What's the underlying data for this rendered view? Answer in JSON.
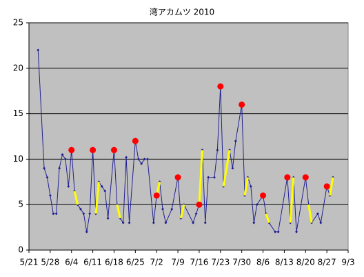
{
  "chart_data": {
    "type": "line",
    "title": "湾アカムツ 2010",
    "x": [
      3,
      5,
      6,
      7,
      8,
      9,
      10,
      11,
      12,
      13,
      14,
      15,
      16,
      17,
      18,
      19,
      20,
      21,
      22,
      23,
      24,
      25,
      26,
      28,
      29,
      30,
      31,
      32,
      33,
      35,
      36,
      37,
      38,
      39,
      41,
      42,
      43,
      44,
      45,
      47,
      49,
      50,
      51,
      54,
      55,
      56,
      57,
      58,
      59,
      61,
      62,
      63,
      64,
      66,
      67,
      68,
      70,
      71,
      72,
      73,
      74,
      75,
      77,
      78,
      79,
      81,
      82,
      85,
      86,
      87,
      88,
      91,
      92,
      93,
      95,
      96,
      98,
      99,
      100
    ],
    "series": [
      {
        "color": "#1f1f8f",
        "style": "line",
        "values": [
          22,
          9,
          8,
          6,
          4,
          4,
          9,
          10.5,
          10,
          7,
          11,
          6.5,
          5,
          4.5,
          4,
          2,
          4,
          11,
          4,
          7.5,
          7,
          6.5,
          3.5,
          11,
          5,
          3.5,
          3,
          10.2,
          3,
          12,
          10,
          9.5,
          10,
          10,
          3,
          6,
          7.5,
          4.5,
          3,
          4.5,
          8,
          3.5,
          5,
          3,
          4,
          5,
          11,
          3,
          8,
          8,
          11,
          18,
          7,
          11,
          9,
          12,
          16,
          6,
          8,
          7,
          3,
          5,
          6,
          4,
          3,
          2,
          2,
          8,
          3,
          8,
          2,
          8,
          5,
          3,
          4,
          3,
          7,
          6,
          8
        ]
      },
      {
        "color": "#ffff00",
        "style": "line",
        "values": [
          null,
          null,
          null,
          null,
          null,
          null,
          null,
          null,
          null,
          null,
          null,
          6.5,
          5,
          null,
          null,
          null,
          null,
          null,
          4,
          7.5,
          null,
          null,
          null,
          null,
          5,
          3.5,
          null,
          null,
          null,
          null,
          null,
          null,
          null,
          null,
          null,
          6,
          7.5,
          null,
          null,
          null,
          null,
          3.5,
          5,
          null,
          null,
          5,
          11,
          null,
          null,
          null,
          null,
          null,
          7,
          11,
          null,
          null,
          null,
          6,
          8,
          null,
          null,
          null,
          null,
          4,
          3,
          null,
          null,
          null,
          3,
          8,
          null,
          null,
          5,
          3,
          null,
          null,
          null,
          6,
          8
        ]
      },
      {
        "color": "#ff0000",
        "style": "markers",
        "values": [
          null,
          null,
          null,
          null,
          null,
          null,
          null,
          null,
          null,
          null,
          11,
          null,
          null,
          null,
          null,
          null,
          null,
          11,
          null,
          null,
          null,
          null,
          null,
          11,
          null,
          null,
          null,
          null,
          null,
          12,
          null,
          null,
          null,
          null,
          null,
          6,
          null,
          null,
          null,
          null,
          8,
          null,
          null,
          null,
          null,
          5,
          null,
          null,
          null,
          null,
          null,
          18,
          null,
          null,
          null,
          null,
          16,
          null,
          null,
          null,
          null,
          null,
          6,
          null,
          null,
          null,
          null,
          8,
          null,
          null,
          null,
          8,
          null,
          null,
          null,
          null,
          7,
          null,
          null
        ]
      }
    ],
    "xlim": [
      0,
      105
    ],
    "xticks": [
      {
        "value": 0,
        "label": "5/21"
      },
      {
        "value": 7,
        "label": "5/28"
      },
      {
        "value": 14,
        "label": "6/4"
      },
      {
        "value": 21,
        "label": "6/11"
      },
      {
        "value": 28,
        "label": "6/18"
      },
      {
        "value": 35,
        "label": "6/25"
      },
      {
        "value": 42,
        "label": "7/2"
      },
      {
        "value": 49,
        "label": "7/9"
      },
      {
        "value": 56,
        "label": "7/16"
      },
      {
        "value": 63,
        "label": "7/23"
      },
      {
        "value": 70,
        "label": "7/30"
      },
      {
        "value": 77,
        "label": "8/6"
      },
      {
        "value": 84,
        "label": "8/13"
      },
      {
        "value": 91,
        "label": "8/20"
      },
      {
        "value": 98,
        "label": "8/27"
      },
      {
        "value": 105,
        "label": "9/3"
      }
    ],
    "ylim": [
      0,
      25
    ],
    "yticks": [
      0,
      5,
      10,
      15,
      20,
      25
    ],
    "grid": true,
    "plot_background": "#c0c0c0"
  }
}
